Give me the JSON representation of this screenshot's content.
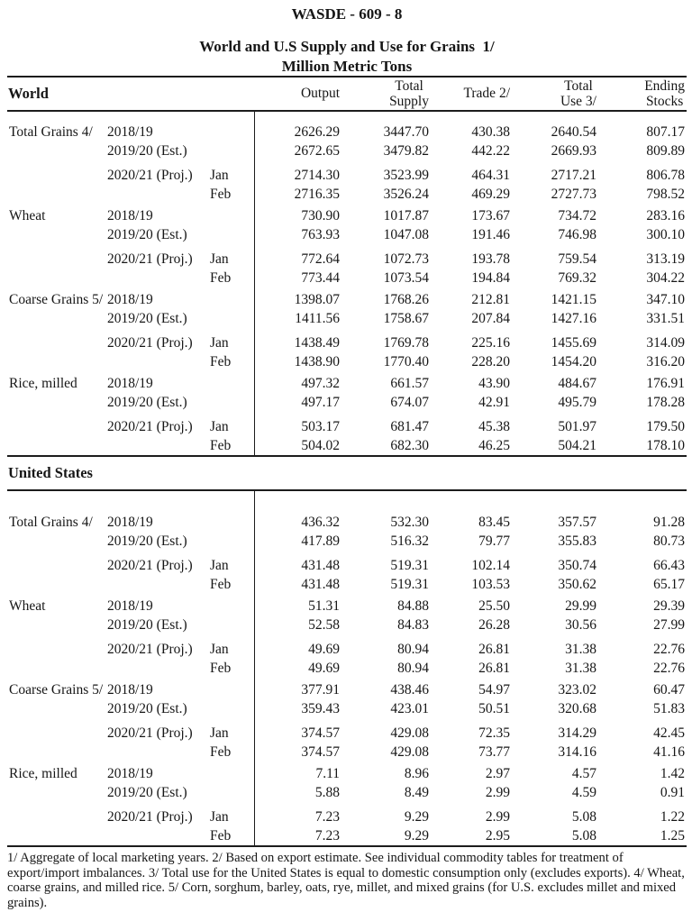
{
  "doc": {
    "id": "WASDE - 609 - 8",
    "title": "World and U.S Supply and Use for Grains  1/",
    "subtitle": "Million Metric Tons"
  },
  "columns": [
    [
      "Output"
    ],
    [
      "Total",
      "Supply"
    ],
    [
      "Trade 2/"
    ],
    [
      "Total",
      "Use 3/"
    ],
    [
      "Ending",
      "Stocks"
    ]
  ],
  "sections": [
    {
      "name": "World",
      "groups": [
        {
          "commodity": "Total Grains 4/",
          "rows": [
            {
              "year": "2018/19",
              "month": "",
              "values": [
                "2626.29",
                "3447.70",
                "430.38",
                "2640.54",
                "807.17"
              ]
            },
            {
              "year": "2019/20 (Est.)",
              "month": "",
              "values": [
                "2672.65",
                "3479.82",
                "442.22",
                "2669.93",
                "809.89"
              ]
            },
            {
              "year": "2020/21 (Proj.)",
              "month": "Jan",
              "values": [
                "2714.30",
                "3523.99",
                "464.31",
                "2717.21",
                "806.78"
              ]
            },
            {
              "year": "",
              "month": "Feb",
              "values": [
                "2716.35",
                "3526.24",
                "469.29",
                "2727.73",
                "798.52"
              ]
            }
          ]
        },
        {
          "commodity": "Wheat",
          "rows": [
            {
              "year": "2018/19",
              "month": "",
              "values": [
                "730.90",
                "1017.87",
                "173.67",
                "734.72",
                "283.16"
              ]
            },
            {
              "year": "2019/20 (Est.)",
              "month": "",
              "values": [
                "763.93",
                "1047.08",
                "191.46",
                "746.98",
                "300.10"
              ]
            },
            {
              "year": "2020/21 (Proj.)",
              "month": "Jan",
              "values": [
                "772.64",
                "1072.73",
                "193.78",
                "759.54",
                "313.19"
              ]
            },
            {
              "year": "",
              "month": "Feb",
              "values": [
                "773.44",
                "1073.54",
                "194.84",
                "769.32",
                "304.22"
              ]
            }
          ]
        },
        {
          "commodity": "Coarse Grains 5/",
          "rows": [
            {
              "year": "2018/19",
              "month": "",
              "values": [
                "1398.07",
                "1768.26",
                "212.81",
                "1421.15",
                "347.10"
              ]
            },
            {
              "year": "2019/20 (Est.)",
              "month": "",
              "values": [
                "1411.56",
                "1758.67",
                "207.84",
                "1427.16",
                "331.51"
              ]
            },
            {
              "year": "2020/21 (Proj.)",
              "month": "Jan",
              "values": [
                "1438.49",
                "1769.78",
                "225.16",
                "1455.69",
                "314.09"
              ]
            },
            {
              "year": "",
              "month": "Feb",
              "values": [
                "1438.90",
                "1770.40",
                "228.20",
                "1454.20",
                "316.20"
              ]
            }
          ]
        },
        {
          "commodity": "Rice, milled",
          "rows": [
            {
              "year": "2018/19",
              "month": "",
              "values": [
                "497.32",
                "661.57",
                "43.90",
                "484.67",
                "176.91"
              ]
            },
            {
              "year": "2019/20 (Est.)",
              "month": "",
              "values": [
                "497.17",
                "674.07",
                "42.91",
                "495.79",
                "178.28"
              ]
            },
            {
              "year": "2020/21 (Proj.)",
              "month": "Jan",
              "values": [
                "503.17",
                "681.47",
                "45.38",
                "501.97",
                "179.50"
              ]
            },
            {
              "year": "",
              "month": "Feb",
              "values": [
                "504.02",
                "682.30",
                "46.25",
                "504.21",
                "178.10"
              ]
            }
          ]
        }
      ]
    },
    {
      "name": "United States",
      "groups": [
        {
          "commodity": "Total Grains 4/",
          "rows": [
            {
              "year": "2018/19",
              "month": "",
              "values": [
                "436.32",
                "532.30",
                "83.45",
                "357.57",
                "91.28"
              ]
            },
            {
              "year": "2019/20 (Est.)",
              "month": "",
              "values": [
                "417.89",
                "516.32",
                "79.77",
                "355.83",
                "80.73"
              ]
            },
            {
              "year": "2020/21 (Proj.)",
              "month": "Jan",
              "values": [
                "431.48",
                "519.31",
                "102.14",
                "350.74",
                "66.43"
              ]
            },
            {
              "year": "",
              "month": "Feb",
              "values": [
                "431.48",
                "519.31",
                "103.53",
                "350.62",
                "65.17"
              ]
            }
          ]
        },
        {
          "commodity": "Wheat",
          "rows": [
            {
              "year": "2018/19",
              "month": "",
              "values": [
                "51.31",
                "84.88",
                "25.50",
                "29.99",
                "29.39"
              ]
            },
            {
              "year": "2019/20 (Est.)",
              "month": "",
              "values": [
                "52.58",
                "84.83",
                "26.28",
                "30.56",
                "27.99"
              ]
            },
            {
              "year": "2020/21 (Proj.)",
              "month": "Jan",
              "values": [
                "49.69",
                "80.94",
                "26.81",
                "31.38",
                "22.76"
              ]
            },
            {
              "year": "",
              "month": "Feb",
              "values": [
                "49.69",
                "80.94",
                "26.81",
                "31.38",
                "22.76"
              ]
            }
          ]
        },
        {
          "commodity": "Coarse Grains 5/",
          "rows": [
            {
              "year": "2018/19",
              "month": "",
              "values": [
                "377.91",
                "438.46",
                "54.97",
                "323.02",
                "60.47"
              ]
            },
            {
              "year": "2019/20 (Est.)",
              "month": "",
              "values": [
                "359.43",
                "423.01",
                "50.51",
                "320.68",
                "51.83"
              ]
            },
            {
              "year": "2020/21 (Proj.)",
              "month": "Jan",
              "values": [
                "374.57",
                "429.08",
                "72.35",
                "314.29",
                "42.45"
              ]
            },
            {
              "year": "",
              "month": "Feb",
              "values": [
                "374.57",
                "429.08",
                "73.77",
                "314.16",
                "41.16"
              ]
            }
          ]
        },
        {
          "commodity": "Rice, milled",
          "rows": [
            {
              "year": "2018/19",
              "month": "",
              "values": [
                "7.11",
                "8.96",
                "2.97",
                "4.57",
                "1.42"
              ]
            },
            {
              "year": "2019/20 (Est.)",
              "month": "",
              "values": [
                "5.88",
                "8.49",
                "2.99",
                "4.59",
                "0.91"
              ]
            },
            {
              "year": "2020/21 (Proj.)",
              "month": "Jan",
              "values": [
                "7.23",
                "9.29",
                "2.99",
                "5.08",
                "1.22"
              ]
            },
            {
              "year": "",
              "month": "Feb",
              "values": [
                "7.23",
                "9.29",
                "2.95",
                "5.08",
                "1.25"
              ]
            }
          ]
        }
      ]
    }
  ],
  "footnote": "1/ Aggregate of local marketing years.  2/ Based on export estimate.  See individual commodity tables for treatment of export/import imbalances.  3/ Total use for the United States is equal to domestic consumption only (excludes exports).  4/ Wheat, coarse grains, and milled rice.  5/ Corn, sorghum, barley, oats, rye, millet, and mixed grains (for U.S. excludes millet and mixed grains)."
}
